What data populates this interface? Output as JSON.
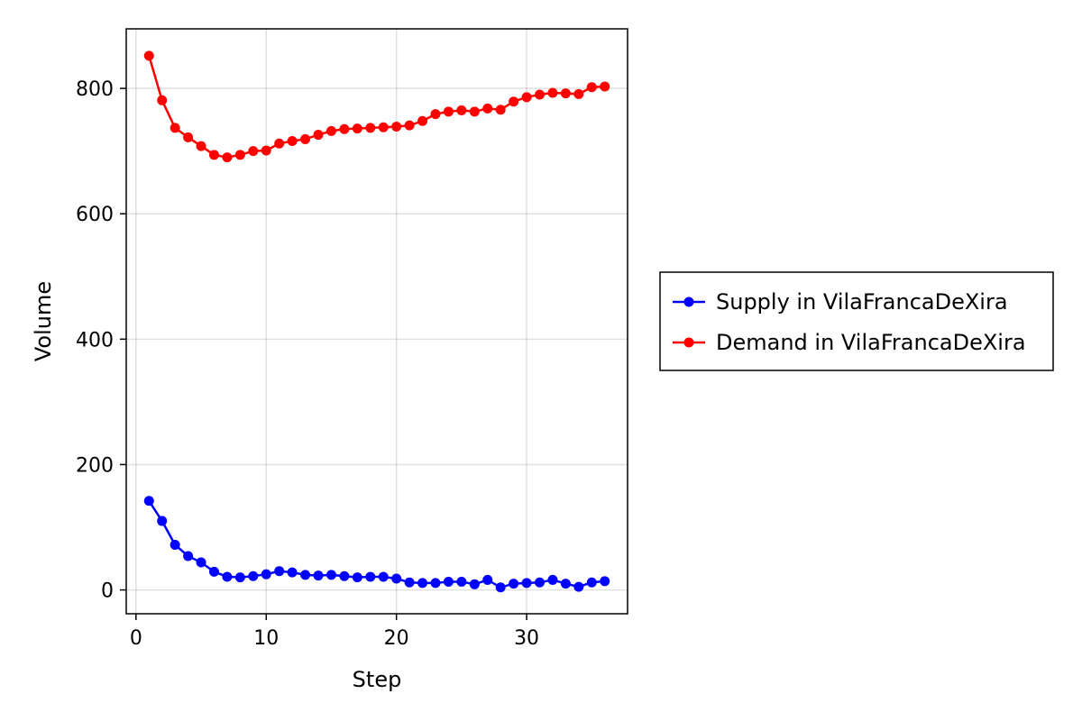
{
  "chart_data": {
    "type": "line",
    "title": "",
    "xlabel": "Step",
    "ylabel": "Volume",
    "xlim": [
      -0.75,
      37.75
    ],
    "ylim": [
      -38,
      895
    ],
    "xticks": [
      0,
      10,
      20,
      30
    ],
    "yticks": [
      0,
      200,
      400,
      600,
      800
    ],
    "grid": true,
    "legend_position": "right",
    "x": [
      1,
      2,
      3,
      4,
      5,
      6,
      7,
      8,
      9,
      10,
      11,
      12,
      13,
      14,
      15,
      16,
      17,
      18,
      19,
      20,
      21,
      22,
      23,
      24,
      25,
      26,
      27,
      28,
      29,
      30,
      31,
      32,
      33,
      34,
      35,
      36
    ],
    "series": [
      {
        "name": "Supply in VilaFrancaDeXira",
        "color": "#0000ff",
        "values": [
          142,
          110,
          72,
          54,
          44,
          29,
          21,
          20,
          22,
          25,
          30,
          28,
          24,
          23,
          24,
          22,
          20,
          21,
          21,
          18,
          12,
          11,
          11,
          13,
          13,
          9,
          16,
          4,
          10,
          11,
          12,
          16,
          10,
          5,
          12,
          14
        ]
      },
      {
        "name": "Demand in VilaFrancaDeXira",
        "color": "#ff0000",
        "values": [
          852,
          781,
          737,
          722,
          708,
          694,
          690,
          694,
          700,
          701,
          712,
          716,
          719,
          726,
          732,
          735,
          736,
          737,
          738,
          739,
          741,
          748,
          759,
          763,
          765,
          763,
          768,
          766,
          779,
          786,
          790,
          793,
          792,
          791,
          802,
          803
        ]
      }
    ]
  }
}
